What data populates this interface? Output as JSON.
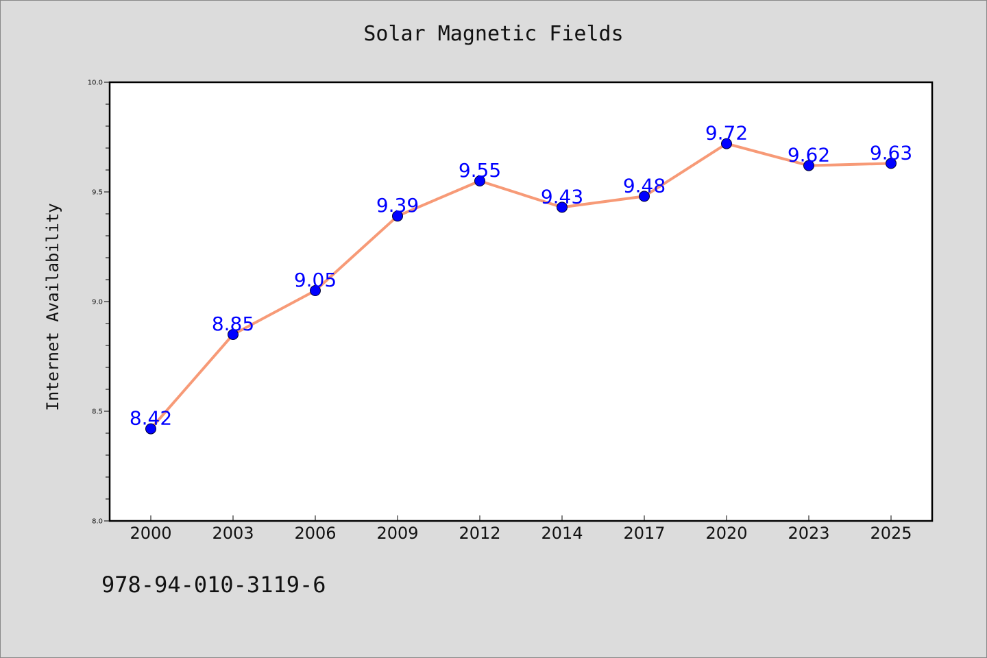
{
  "chart_data": {
    "type": "line",
    "title": "Solar Magnetic Fields",
    "xlabel": "",
    "ylabel": "Internet Availability",
    "categories": [
      "2000",
      "2003",
      "2006",
      "2009",
      "2012",
      "2014",
      "2017",
      "2020",
      "2023",
      "2025"
    ],
    "series": [
      {
        "values": [
          8.42,
          8.85,
          9.05,
          9.39,
          9.55,
          9.43,
          9.48,
          9.72,
          9.62,
          9.63
        ],
        "data_labels": [
          "8.42",
          "8.85",
          "9.05",
          "9.39",
          "9.55",
          "9.43",
          "9.48",
          "9.72",
          "9.62",
          "9.63"
        ],
        "line_color": "#f79a77",
        "marker_color": "#0000ff"
      }
    ],
    "ylim": [
      8.0,
      10.0
    ],
    "yticks": [
      "8.0",
      "8.5",
      "9.0",
      "9.5",
      "10.0"
    ],
    "grid": false,
    "legend": "none"
  },
  "footer": {
    "code": "978-94-010-3119-6"
  },
  "colors": {
    "background": "#dcdcdc",
    "plot_background": "#ffffff",
    "data_label": "#0000ff"
  }
}
